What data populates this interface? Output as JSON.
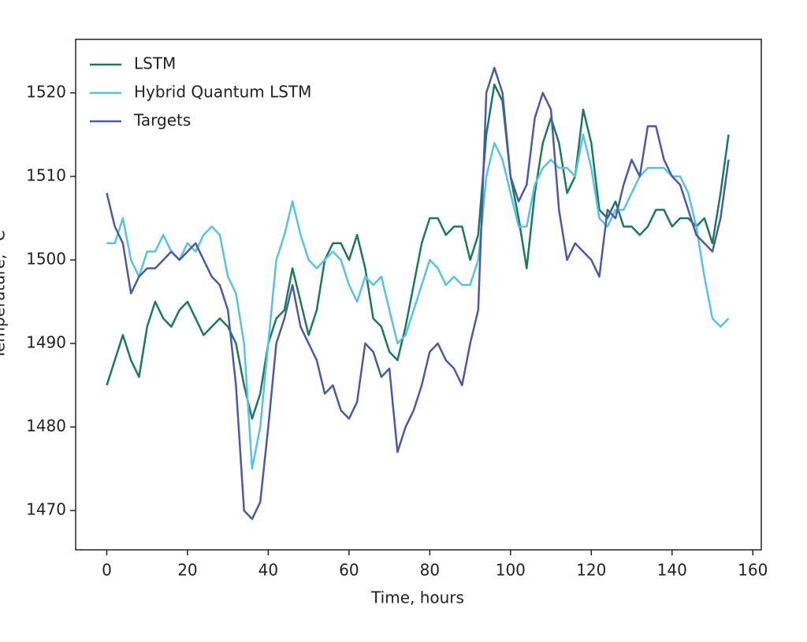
{
  "chart_data": {
    "type": "line",
    "xlabel": "Time, hours",
    "ylabel": "Temperature, °C",
    "x": [
      0,
      2,
      4,
      6,
      8,
      10,
      12,
      14,
      16,
      18,
      20,
      22,
      24,
      26,
      28,
      30,
      32,
      34,
      36,
      38,
      40,
      42,
      44,
      46,
      48,
      50,
      52,
      54,
      56,
      58,
      60,
      62,
      64,
      66,
      68,
      70,
      72,
      74,
      76,
      78,
      80,
      82,
      84,
      86,
      88,
      90,
      92,
      94,
      96,
      98,
      100,
      102,
      104,
      106,
      108,
      110,
      112,
      114,
      116,
      118,
      120,
      122,
      124,
      126,
      128,
      130,
      132,
      134,
      136,
      138,
      140,
      142,
      144,
      146,
      148,
      150,
      152,
      154
    ],
    "series": [
      {
        "name": "LSTM",
        "color": "#1b7a5a",
        "values": [
          1485,
          1488,
          1491,
          1488,
          1486,
          1492,
          1495,
          1493,
          1492,
          1494,
          1495,
          1493,
          1491,
          1492,
          1493,
          1492,
          1490,
          1485,
          1481,
          1484,
          1490,
          1493,
          1494,
          1499,
          1495,
          1491,
          1494,
          1500,
          1502,
          1502,
          1500,
          1503,
          1499,
          1493,
          1492,
          1489,
          1488,
          1492,
          1497,
          1502,
          1505,
          1505,
          1503,
          1504,
          1504,
          1500,
          1503,
          1515,
          1521,
          1519,
          1510,
          1505,
          1499,
          1508,
          1514,
          1517,
          1514,
          1508,
          1510,
          1518,
          1514,
          1506,
          1505,
          1507,
          1504,
          1504,
          1503,
          1504,
          1506,
          1506,
          1504,
          1505,
          1505,
          1504,
          1505,
          1502,
          1508,
          1515
        ]
      },
      {
        "name": "Hybrid Quantum LSTM",
        "color": "#56c3e6",
        "values": [
          1502,
          1502,
          1505,
          1500,
          1498,
          1501,
          1501,
          1503,
          1501,
          1500,
          1502,
          1501,
          1503,
          1504,
          1503,
          1498,
          1496,
          1490,
          1475,
          1480,
          1490,
          1500,
          1503,
          1507,
          1503,
          1500,
          1499,
          1500,
          1501,
          1500,
          1497,
          1495,
          1498,
          1497,
          1498,
          1494,
          1490,
          1491,
          1494,
          1497,
          1500,
          1499,
          1497,
          1498,
          1497,
          1497,
          1500,
          1510,
          1514,
          1512,
          1508,
          1504,
          1504,
          1509,
          1511,
          1512,
          1511,
          1511,
          1510,
          1515,
          1511,
          1505,
          1504,
          1506,
          1506,
          1508,
          1510,
          1511,
          1511,
          1511,
          1510,
          1510,
          1508,
          1504,
          1498,
          1493,
          1492,
          1493
        ]
      },
      {
        "name": "Targets",
        "color": "#4b5aa8",
        "values": [
          1508,
          1504,
          1502,
          1496,
          1498,
          1499,
          1499,
          1500,
          1501,
          1500,
          1501,
          1502,
          1500,
          1498,
          1497,
          1494,
          1485,
          1470,
          1469,
          1471,
          1480,
          1490,
          1493,
          1497,
          1492,
          1490,
          1488,
          1484,
          1485,
          1482,
          1481,
          1483,
          1490,
          1489,
          1486,
          1487,
          1477,
          1480,
          1482,
          1485,
          1489,
          1490,
          1488,
          1487,
          1485,
          1490,
          1494,
          1520,
          1523,
          1520,
          1510,
          1507,
          1509,
          1517,
          1520,
          1518,
          1506,
          1500,
          1502,
          1501,
          1500,
          1498,
          1506,
          1505,
          1509,
          1512,
          1510,
          1516,
          1516,
          1512,
          1510,
          1509,
          1506,
          1503,
          1502,
          1501,
          1505,
          1512
        ]
      }
    ],
    "xlim": [
      -7.7,
      162.1
    ],
    "ylim": [
      1465.3,
      1526.4
    ],
    "xticks": [
      0,
      20,
      40,
      60,
      80,
      100,
      120,
      140,
      160
    ],
    "yticks": [
      1470,
      1480,
      1490,
      1500,
      1510,
      1520
    ],
    "legend": "upper left"
  }
}
